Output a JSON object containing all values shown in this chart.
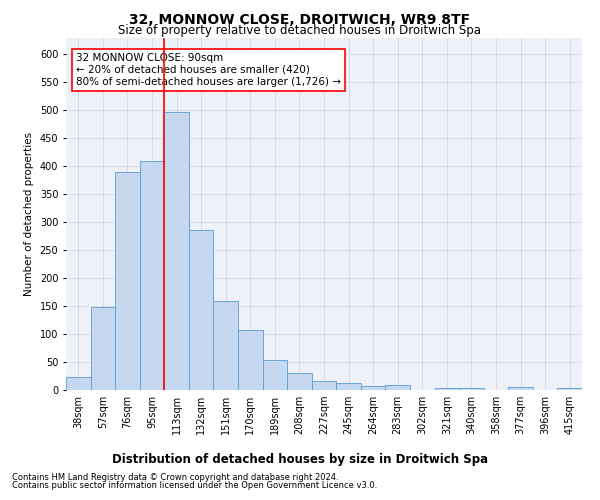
{
  "title": "32, MONNOW CLOSE, DROITWICH, WR9 8TF",
  "subtitle": "Size of property relative to detached houses in Droitwich Spa",
  "xlabel": "Distribution of detached houses by size in Droitwich Spa",
  "ylabel": "Number of detached properties",
  "footnote1": "Contains HM Land Registry data © Crown copyright and database right 2024.",
  "footnote2": "Contains public sector information licensed under the Open Government Licence v3.0.",
  "categories": [
    "38sqm",
    "57sqm",
    "76sqm",
    "95sqm",
    "113sqm",
    "132sqm",
    "151sqm",
    "170sqm",
    "189sqm",
    "208sqm",
    "227sqm",
    "245sqm",
    "264sqm",
    "283sqm",
    "302sqm",
    "321sqm",
    "340sqm",
    "358sqm",
    "377sqm",
    "396sqm",
    "415sqm"
  ],
  "values": [
    23,
    148,
    390,
    409,
    497,
    286,
    159,
    108,
    53,
    30,
    16,
    12,
    7,
    9,
    0,
    4,
    4,
    0,
    5,
    0,
    4
  ],
  "bar_color": "#c5d8f0",
  "bar_edge_color": "#5b9bd5",
  "grid_color": "#d0d8e8",
  "background_color": "#eef2f8",
  "annotation_text": "32 MONNOW CLOSE: 90sqm\n← 20% of detached houses are smaller (420)\n80% of semi-detached houses are larger (1,726) →",
  "annotation_box_color": "white",
  "annotation_box_edge": "red",
  "vline_x_index": 3.5,
  "vline_color": "red",
  "ylim": [
    0,
    630
  ],
  "yticks": [
    0,
    50,
    100,
    150,
    200,
    250,
    300,
    350,
    400,
    450,
    500,
    550,
    600
  ],
  "title_fontsize": 10,
  "subtitle_fontsize": 8.5,
  "xlabel_fontsize": 8.5,
  "ylabel_fontsize": 7.5,
  "tick_fontsize": 7,
  "annotation_fontsize": 7.5,
  "footnote_fontsize": 6
}
